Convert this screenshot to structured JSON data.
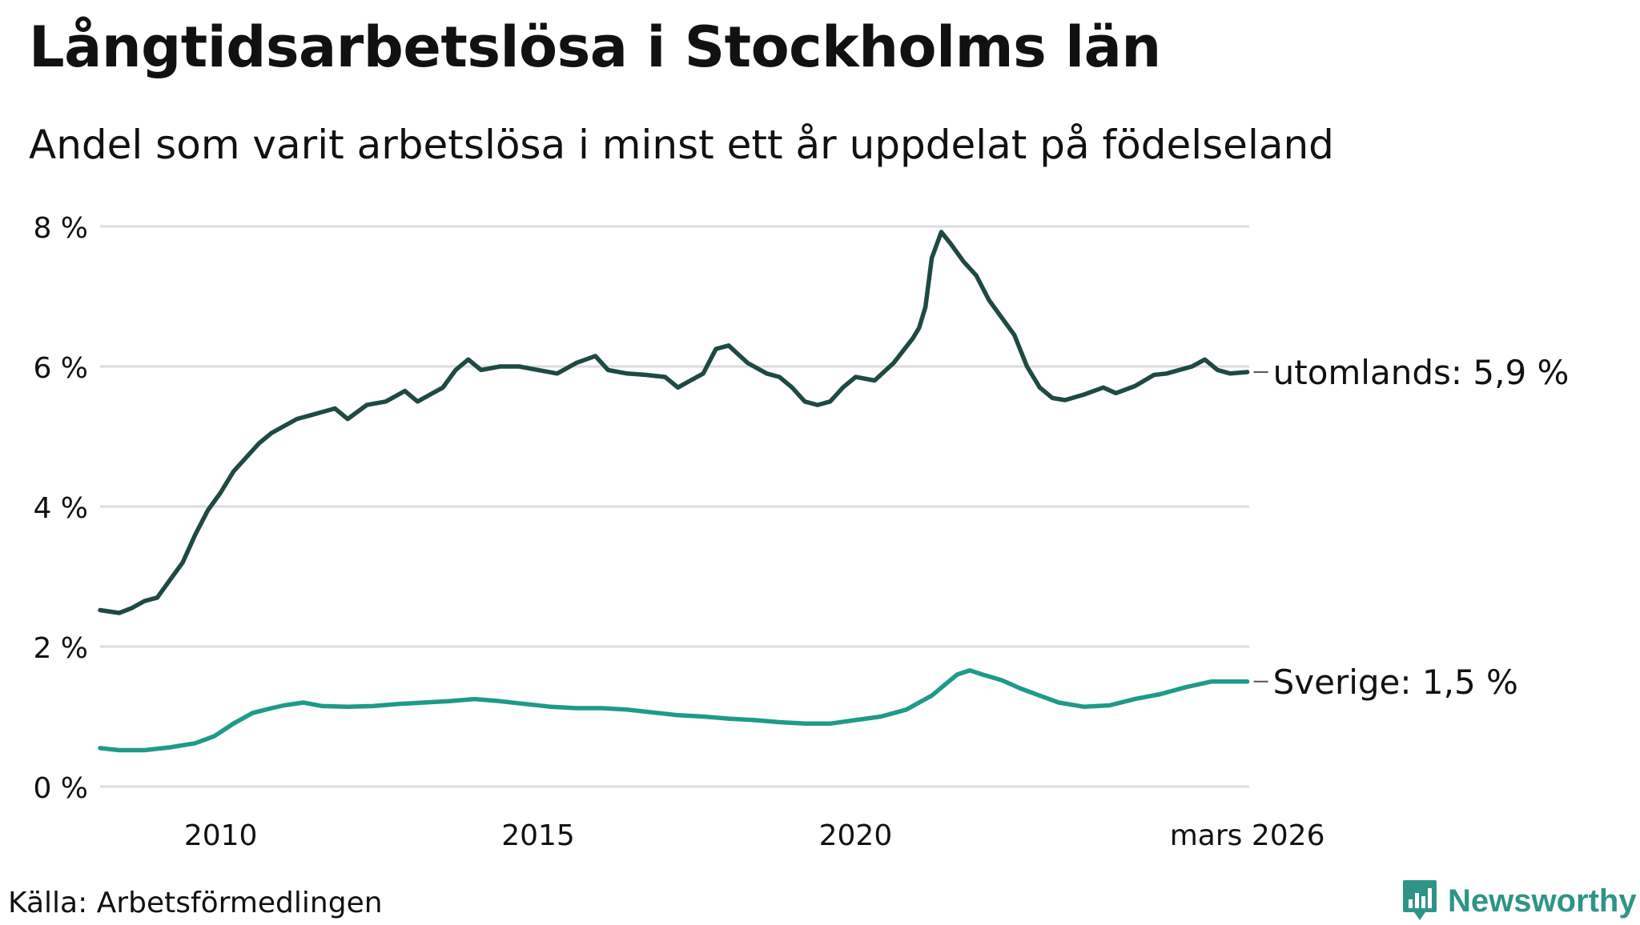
{
  "title": "Långtidsarbetslösa i Stockholms län",
  "subtitle": "Andel som varit arbetslösa i minst ett år uppdelat på födelseland",
  "source": "Källa: Arbetsförmedlingen",
  "brand": "Newsworthy",
  "colors": {
    "utomlands": "#1e4a43",
    "sverige": "#1f9a8a",
    "grid": "#dcdcdc",
    "brand": "#2f9488"
  },
  "chart_data": {
    "type": "line",
    "x_range": [
      2008.1,
      2026.2
    ],
    "ylim": [
      0,
      8
    ],
    "yticks": [
      {
        "value": 0,
        "label": "0 %"
      },
      {
        "value": 2,
        "label": "2 %"
      },
      {
        "value": 4,
        "label": "4 %"
      },
      {
        "value": 6,
        "label": "6 %"
      },
      {
        "value": 8,
        "label": "8 %"
      }
    ],
    "xticks": [
      {
        "value": 2010,
        "label": "2010"
      },
      {
        "value": 2015,
        "label": "2015"
      },
      {
        "value": 2020,
        "label": "2020"
      },
      {
        "value": 2026.17,
        "label": "mars 2026"
      }
    ],
    "series": [
      {
        "name": "utomlands",
        "end_label": "utomlands: 5,9 %",
        "x": [
          2008.1,
          2008.4,
          2008.6,
          2008.8,
          2009.0,
          2009.2,
          2009.4,
          2009.6,
          2009.8,
          2010.0,
          2010.2,
          2010.4,
          2010.6,
          2010.8,
          2011.0,
          2011.2,
          2011.4,
          2011.6,
          2011.8,
          2012.0,
          2012.3,
          2012.6,
          2012.9,
          2013.1,
          2013.3,
          2013.5,
          2013.7,
          2013.9,
          2014.1,
          2014.4,
          2014.7,
          2015.0,
          2015.3,
          2015.6,
          2015.9,
          2016.1,
          2016.4,
          2016.7,
          2017.0,
          2017.2,
          2017.4,
          2017.6,
          2017.8,
          2018.0,
          2018.3,
          2018.6,
          2018.8,
          2019.0,
          2019.2,
          2019.4,
          2019.6,
          2019.8,
          2020.0,
          2020.3,
          2020.6,
          2020.9,
          2021.0,
          2021.1,
          2021.2,
          2021.35,
          2021.5,
          2021.7,
          2021.9,
          2022.1,
          2022.3,
          2022.5,
          2022.7,
          2022.9,
          2023.1,
          2023.3,
          2023.6,
          2023.9,
          2024.1,
          2024.4,
          2024.7,
          2024.9,
          2025.1,
          2025.3,
          2025.5,
          2025.7,
          2025.9,
          2026.17
        ],
        "values": [
          2.52,
          2.48,
          2.55,
          2.65,
          2.7,
          2.95,
          3.2,
          3.6,
          3.95,
          4.2,
          4.5,
          4.7,
          4.9,
          5.05,
          5.15,
          5.25,
          5.3,
          5.35,
          5.4,
          5.25,
          5.45,
          5.5,
          5.65,
          5.5,
          5.6,
          5.7,
          5.95,
          6.1,
          5.95,
          6.0,
          6.0,
          5.95,
          5.9,
          6.05,
          6.15,
          5.95,
          5.9,
          5.88,
          5.85,
          5.7,
          5.8,
          5.9,
          6.25,
          6.3,
          6.05,
          5.9,
          5.85,
          5.7,
          5.5,
          5.45,
          5.5,
          5.7,
          5.85,
          5.8,
          6.05,
          6.4,
          6.55,
          6.85,
          7.55,
          7.92,
          7.75,
          7.5,
          7.3,
          6.95,
          6.7,
          6.45,
          6.0,
          5.7,
          5.55,
          5.52,
          5.6,
          5.7,
          5.62,
          5.72,
          5.88,
          5.9,
          5.95,
          6.0,
          6.1,
          5.95,
          5.9,
          5.92
        ]
      },
      {
        "name": "Sverige",
        "end_label": "Sverige: 1,5 %",
        "x": [
          2008.1,
          2008.4,
          2008.8,
          2009.2,
          2009.6,
          2009.9,
          2010.2,
          2010.5,
          2010.8,
          2011.0,
          2011.3,
          2011.6,
          2012.0,
          2012.4,
          2012.8,
          2013.2,
          2013.6,
          2014.0,
          2014.4,
          2014.8,
          2015.2,
          2015.6,
          2016.0,
          2016.4,
          2016.8,
          2017.2,
          2017.6,
          2018.0,
          2018.4,
          2018.8,
          2019.2,
          2019.6,
          2020.0,
          2020.4,
          2020.8,
          2021.0,
          2021.2,
          2021.4,
          2021.6,
          2021.8,
          2022.0,
          2022.3,
          2022.6,
          2022.9,
          2023.2,
          2023.6,
          2024.0,
          2024.4,
          2024.8,
          2025.2,
          2025.6,
          2026.17
        ],
        "values": [
          0.55,
          0.52,
          0.52,
          0.56,
          0.62,
          0.72,
          0.9,
          1.05,
          1.12,
          1.16,
          1.2,
          1.15,
          1.14,
          1.15,
          1.18,
          1.2,
          1.22,
          1.25,
          1.22,
          1.18,
          1.14,
          1.12,
          1.12,
          1.1,
          1.06,
          1.02,
          1.0,
          0.97,
          0.95,
          0.92,
          0.9,
          0.9,
          0.95,
          1.0,
          1.1,
          1.2,
          1.3,
          1.45,
          1.6,
          1.66,
          1.6,
          1.52,
          1.4,
          1.3,
          1.2,
          1.14,
          1.16,
          1.25,
          1.32,
          1.42,
          1.5,
          1.5
        ]
      }
    ]
  }
}
